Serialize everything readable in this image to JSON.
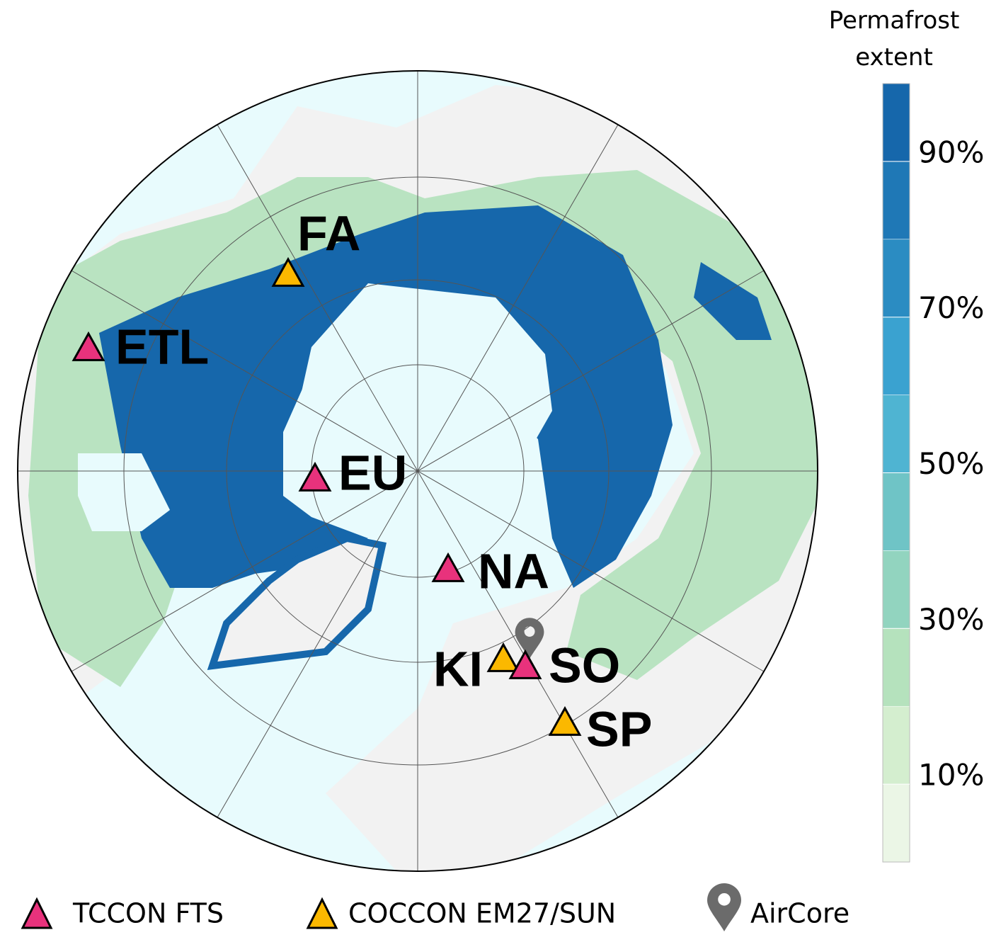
{
  "colorbar": {
    "title_lines": [
      "Permafrost",
      "extent"
    ],
    "range": [
      0,
      100
    ],
    "ticks": [
      {
        "value": 90,
        "label": "90%"
      },
      {
        "value": 70,
        "label": "70%"
      },
      {
        "value": 50,
        "label": "50%"
      },
      {
        "value": 30,
        "label": "30%"
      },
      {
        "value": 10,
        "label": "10%"
      }
    ],
    "colors": [
      "#ebf6e6",
      "#d4eecf",
      "#b5e2bd",
      "#92d4bf",
      "#6fc4c6",
      "#4fb4d2",
      "#3aa2d0",
      "#2b8cc2",
      "#1f78b6",
      "#1667ab"
    ]
  },
  "sites": [
    {
      "label": "FA"
    },
    {
      "label": "ETL"
    },
    {
      "label": "EU"
    },
    {
      "label": "NA"
    },
    {
      "label": "KI"
    },
    {
      "label": "SO"
    },
    {
      "label": "SP"
    }
  ],
  "legend": [
    "TCCON FTS",
    "COCCON EM27/SUN",
    "AirCore"
  ]
}
